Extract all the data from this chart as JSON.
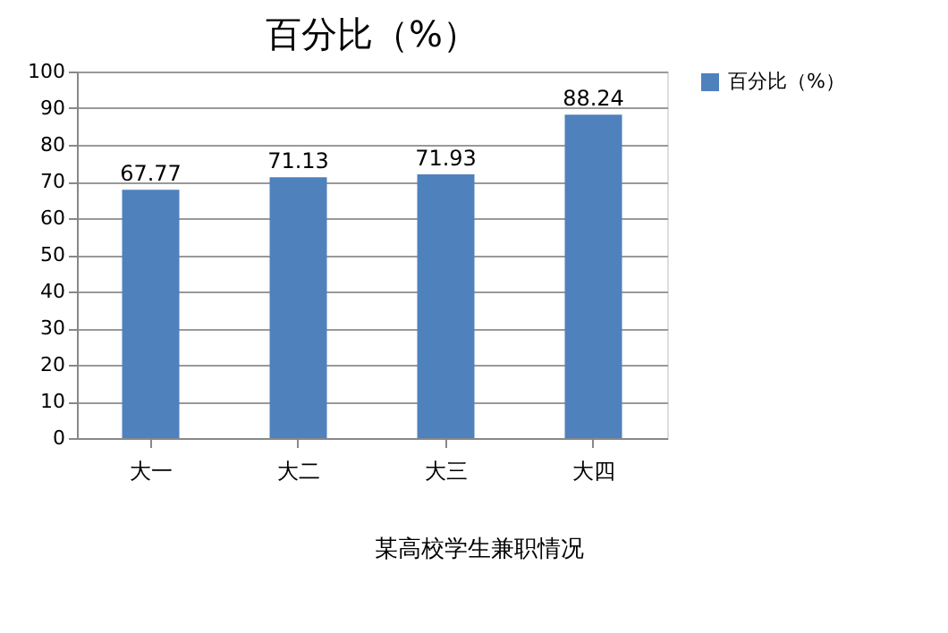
{
  "chart_data": {
    "type": "bar",
    "title": "百分比（%）",
    "categories": [
      "大一",
      "大二",
      "大三",
      "大四"
    ],
    "series": [
      {
        "name": "百分比（%）",
        "color": "#4f81bd",
        "values": [
          67.77,
          71.13,
          71.93,
          88.24
        ]
      }
    ],
    "ylim": [
      0,
      100
    ],
    "yticks": [
      0,
      10,
      20,
      30,
      40,
      50,
      60,
      70,
      80,
      90,
      100
    ],
    "grid": "y",
    "legend": "right",
    "data_labels": true,
    "annotations": [
      "某高校学生兼职情况"
    ]
  }
}
